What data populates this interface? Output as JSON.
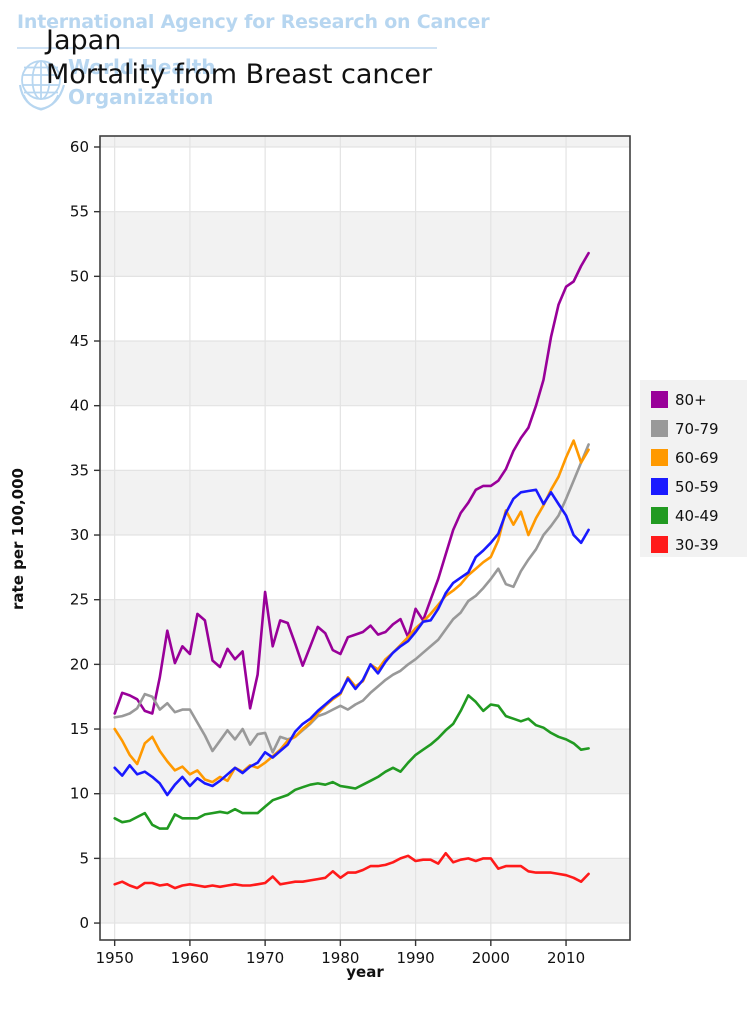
{
  "header": {
    "watermark_line1": "International Agency for Research on Cancer",
    "watermark_line2": "World Health",
    "watermark_line3": "Organization",
    "watermark_color": "#b7d6f0",
    "title_line1": "Japan",
    "title_line2": "Mortality from Breast cancer"
  },
  "chart_data": {
    "type": "line",
    "title": "Japan — Mortality from Breast cancer",
    "xlabel": "year",
    "ylabel": "rate per 100,000",
    "x_ticks": [
      1950,
      1960,
      1970,
      1980,
      1990,
      2000,
      2010
    ],
    "y_ticks": [
      0,
      5,
      10,
      15,
      20,
      25,
      30,
      35,
      40,
      45,
      50,
      55,
      60
    ],
    "xlim": [
      1948.05,
      2018.5
    ],
    "ylim": [
      -1.31,
      60.85
    ],
    "grid": true,
    "band_fill": "#f2f2f2",
    "grid_color": "#e3e3e3",
    "border_color": "#3f3f3f",
    "legend_position": "right",
    "years": [
      1950,
      1951,
      1952,
      1953,
      1954,
      1955,
      1956,
      1957,
      1958,
      1959,
      1960,
      1961,
      1962,
      1963,
      1964,
      1965,
      1966,
      1967,
      1968,
      1969,
      1970,
      1971,
      1972,
      1973,
      1974,
      1975,
      1976,
      1977,
      1978,
      1979,
      1980,
      1981,
      1982,
      1983,
      1984,
      1985,
      1986,
      1987,
      1988,
      1989,
      1990,
      1991,
      1992,
      1993,
      1994,
      1995,
      1996,
      1997,
      1998,
      1999,
      2000,
      2001,
      2002,
      2003,
      2004,
      2005,
      2006,
      2007,
      2008,
      2009,
      2010,
      2011,
      2012,
      2013
    ],
    "series": [
      {
        "name": "80+",
        "color": "#990099",
        "values": [
          16.2,
          17.8,
          17.6,
          17.3,
          16.4,
          16.2,
          19.0,
          22.6,
          20.1,
          21.4,
          20.8,
          23.9,
          23.4,
          20.3,
          19.8,
          21.2,
          20.4,
          21.0,
          16.6,
          19.2,
          25.6,
          21.4,
          23.4,
          23.2,
          21.6,
          19.9,
          21.4,
          22.9,
          22.4,
          21.1,
          20.8,
          22.1,
          22.3,
          22.5,
          23.0,
          22.3,
          22.5,
          23.1,
          23.5,
          22.1,
          24.3,
          23.4,
          25.0,
          26.6,
          28.5,
          30.4,
          31.7,
          32.5,
          33.5,
          33.8,
          33.8,
          34.2,
          35.1,
          36.5,
          37.5,
          38.3,
          40.0,
          42.0,
          45.3,
          47.8,
          49.2,
          49.6,
          50.8,
          51.8
        ]
      },
      {
        "name": "70-79",
        "color": "#999999",
        "values": [
          15.9,
          16.0,
          16.2,
          16.6,
          17.7,
          17.5,
          16.5,
          17.0,
          16.3,
          16.5,
          16.5,
          15.5,
          14.5,
          13.3,
          14.1,
          14.9,
          14.2,
          15.0,
          13.8,
          14.6,
          14.7,
          13.2,
          14.4,
          14.2,
          14.4,
          14.9,
          15.4,
          16.0,
          16.2,
          16.5,
          16.8,
          16.5,
          16.9,
          17.2,
          17.8,
          18.3,
          18.8,
          19.2,
          19.5,
          20.0,
          20.4,
          20.9,
          21.4,
          21.9,
          22.7,
          23.5,
          24.0,
          24.9,
          25.3,
          25.9,
          26.6,
          27.4,
          26.2,
          26.0,
          27.2,
          28.1,
          28.9,
          30.0,
          30.7,
          31.5,
          32.8,
          34.2,
          35.6,
          37.0
        ]
      },
      {
        "name": "60-69",
        "color": "#ff9900",
        "values": [
          15.0,
          14.1,
          13.0,
          12.3,
          13.9,
          14.4,
          13.3,
          12.5,
          11.8,
          12.1,
          11.5,
          11.8,
          11.1,
          10.9,
          11.3,
          11.0,
          12.0,
          11.7,
          12.2,
          12.0,
          12.4,
          12.9,
          13.4,
          14.1,
          14.4,
          15.0,
          15.5,
          16.2,
          16.8,
          17.3,
          17.7,
          19.0,
          18.3,
          18.7,
          20.0,
          19.6,
          20.4,
          20.9,
          21.5,
          22.1,
          22.8,
          23.3,
          23.9,
          24.6,
          25.3,
          25.7,
          26.2,
          26.9,
          27.4,
          27.9,
          28.3,
          29.6,
          31.9,
          30.8,
          31.8,
          30.0,
          31.3,
          32.3,
          33.5,
          34.5,
          36.0,
          37.3,
          35.6,
          36.6
        ]
      },
      {
        "name": "50-59",
        "color": "#1a1aff",
        "values": [
          12.0,
          11.4,
          12.2,
          11.5,
          11.7,
          11.3,
          10.8,
          9.9,
          10.7,
          11.3,
          10.6,
          11.2,
          10.8,
          10.6,
          11.0,
          11.5,
          12.0,
          11.6,
          12.1,
          12.4,
          13.2,
          12.8,
          13.3,
          13.8,
          14.8,
          15.4,
          15.8,
          16.4,
          16.9,
          17.4,
          17.8,
          18.9,
          18.1,
          18.8,
          20.0,
          19.3,
          20.2,
          20.9,
          21.4,
          21.8,
          22.5,
          23.3,
          23.4,
          24.3,
          25.5,
          26.3,
          26.7,
          27.1,
          28.3,
          28.8,
          29.4,
          30.1,
          31.7,
          32.8,
          33.3,
          33.4,
          33.5,
          32.4,
          33.3,
          32.4,
          31.5,
          30.0,
          29.4,
          30.4
        ]
      },
      {
        "name": "40-49",
        "color": "#219a21",
        "values": [
          8.1,
          7.8,
          7.9,
          8.2,
          8.5,
          7.6,
          7.3,
          7.3,
          8.4,
          8.1,
          8.1,
          8.1,
          8.4,
          8.5,
          8.6,
          8.5,
          8.8,
          8.5,
          8.5,
          8.5,
          9.0,
          9.5,
          9.7,
          9.9,
          10.3,
          10.5,
          10.7,
          10.8,
          10.7,
          10.9,
          10.6,
          10.5,
          10.4,
          10.7,
          11.0,
          11.3,
          11.7,
          12.0,
          11.7,
          12.4,
          13.0,
          13.4,
          13.8,
          14.3,
          14.9,
          15.4,
          16.4,
          17.6,
          17.1,
          16.4,
          16.9,
          16.8,
          16.0,
          15.8,
          15.6,
          15.8,
          15.3,
          15.1,
          14.7,
          14.4,
          14.2,
          13.9,
          13.4,
          13.5
        ]
      },
      {
        "name": "30-39",
        "color": "#ff1a1a",
        "values": [
          3.0,
          3.2,
          2.9,
          2.7,
          3.1,
          3.1,
          2.9,
          3.0,
          2.7,
          2.9,
          3.0,
          2.9,
          2.8,
          2.9,
          2.8,
          2.9,
          3.0,
          2.9,
          2.9,
          3.0,
          3.1,
          3.6,
          3.0,
          3.1,
          3.2,
          3.2,
          3.3,
          3.4,
          3.5,
          4.0,
          3.5,
          3.9,
          3.9,
          4.1,
          4.4,
          4.4,
          4.5,
          4.7,
          5.0,
          5.2,
          4.8,
          4.9,
          4.9,
          4.6,
          5.4,
          4.7,
          4.9,
          5.0,
          4.8,
          5.0,
          5.0,
          4.2,
          4.4,
          4.4,
          4.4,
          4.0,
          3.9,
          3.9,
          3.9,
          3.8,
          3.7,
          3.5,
          3.2,
          3.8
        ]
      }
    ]
  }
}
